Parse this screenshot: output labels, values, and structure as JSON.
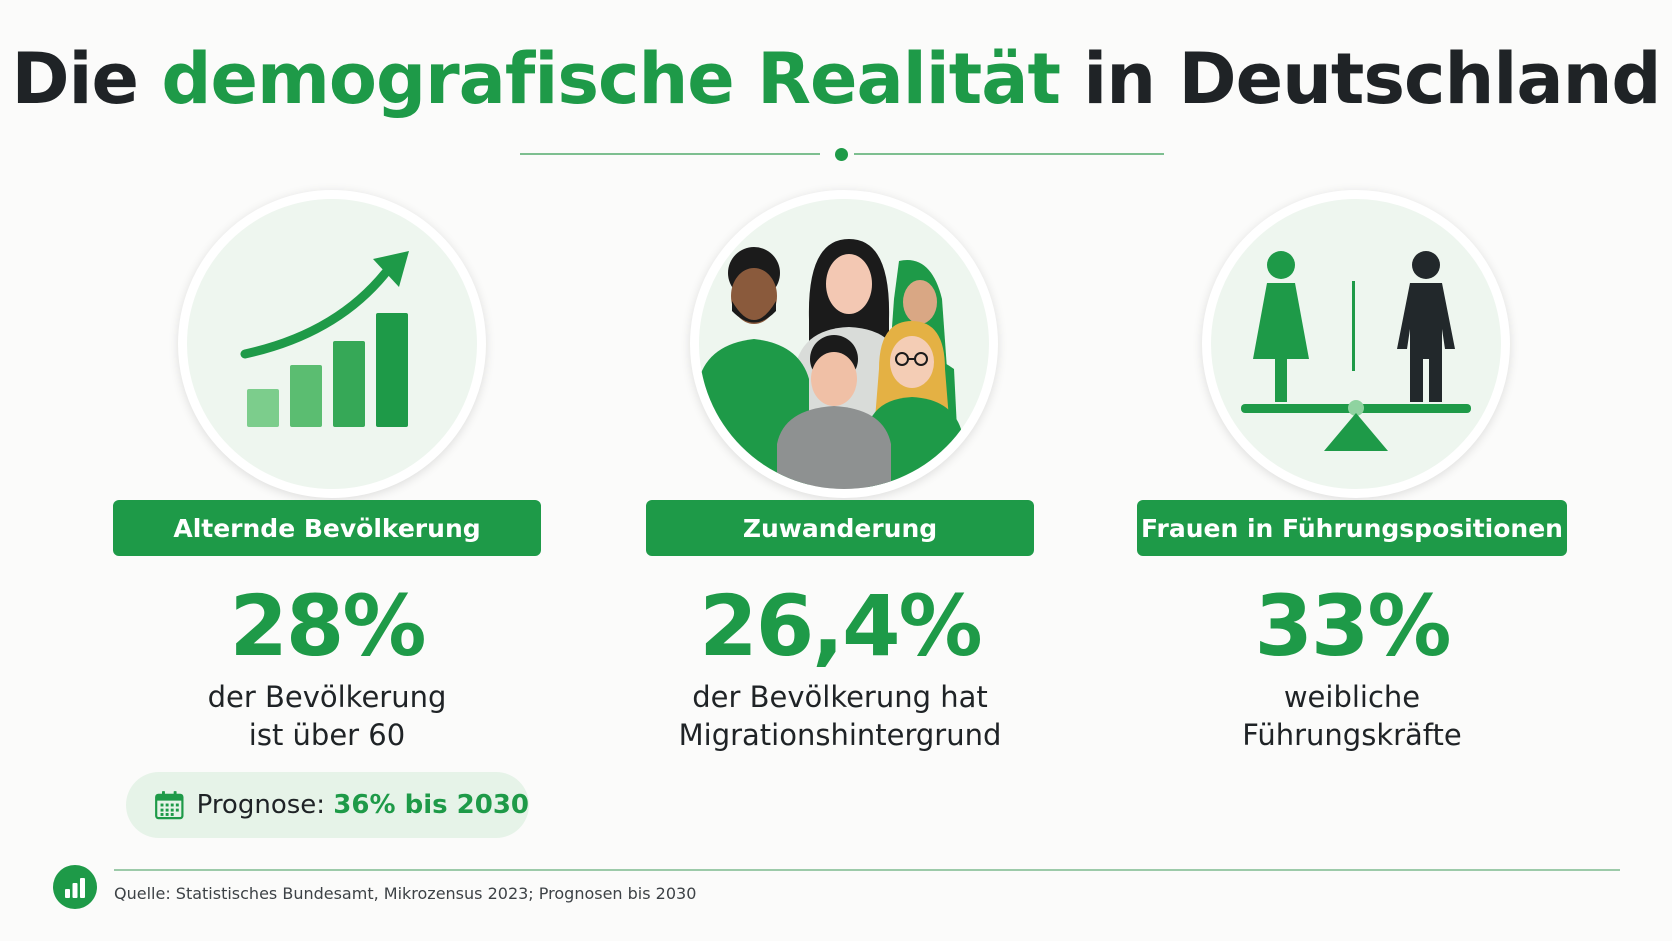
{
  "header": {
    "title_part1": "Die ",
    "title_accent": "demografische Realität",
    "title_part2": " in Deutschland"
  },
  "colors": {
    "accent": "#1e9a48",
    "text": "#1f2326",
    "light_green": "#e6f3e8",
    "background": "#fbfbfa"
  },
  "stats": [
    {
      "icon": "growth-chart-icon",
      "label": "Alternde Bevölkerung",
      "value": "28%",
      "desc_line1": "der Bevölkerung",
      "desc_line2": "ist über 60"
    },
    {
      "icon": "diverse-people-icon",
      "label": "Zuwanderung",
      "value": "26,4%",
      "desc_line1": "der Bevölkerung hat",
      "desc_line2": "Migrationshintergrund"
    },
    {
      "icon": "gender-balance-scale-icon",
      "label": "Frauen in Führungspositionen",
      "value": "33%",
      "desc_line1": "weibliche",
      "desc_line2": "Führungskräfte"
    }
  ],
  "forecast": {
    "icon": "calendar-icon",
    "prefix": "Prognose: ",
    "highlight": "36% bis 2030"
  },
  "footer": {
    "icon": "bar-chart-icon",
    "source": "Quelle: Statistisches Bundesamt, Mikrozensus 2023; Prognosen bis 2030"
  }
}
